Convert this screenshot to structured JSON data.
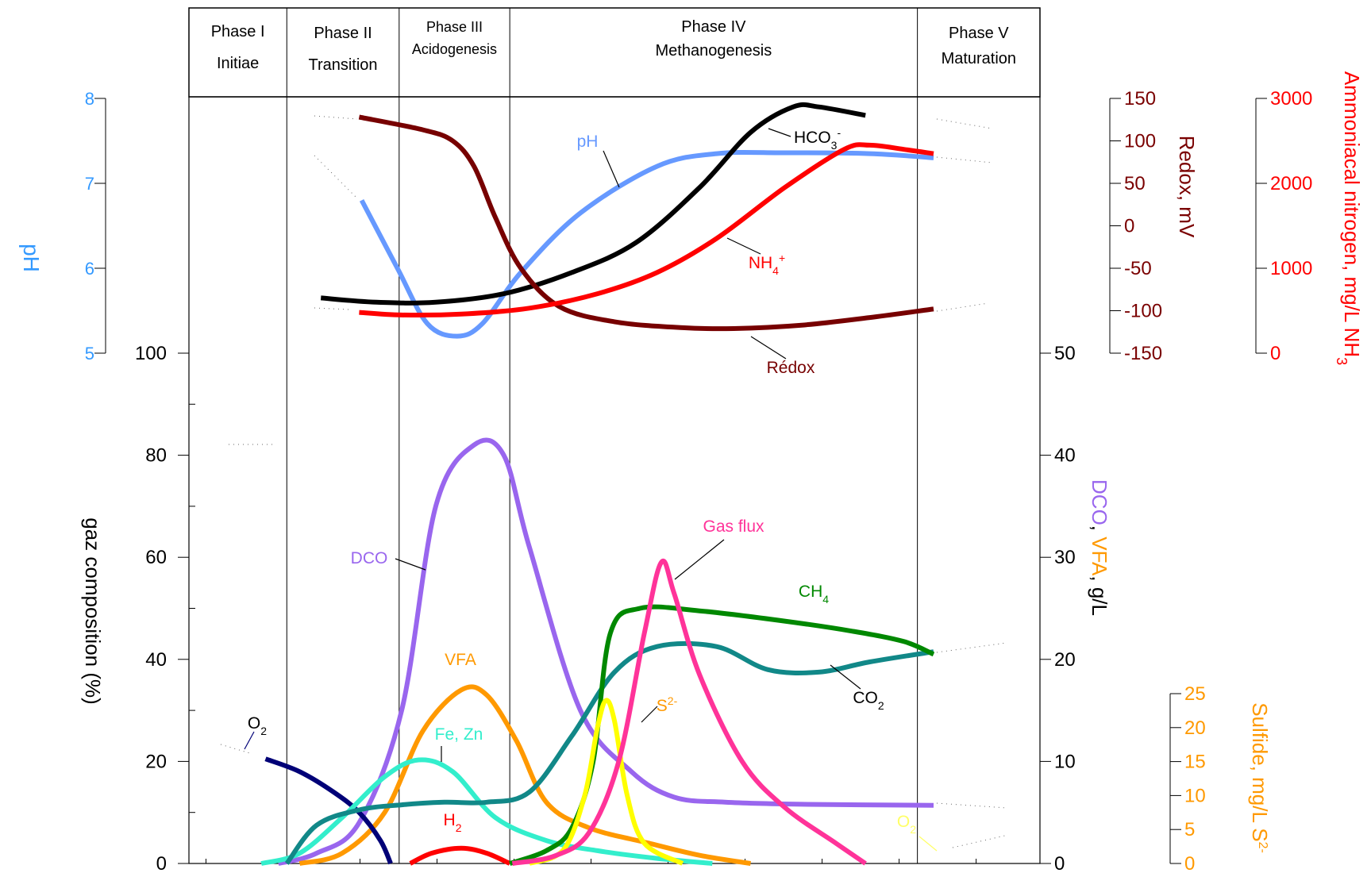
{
  "chart_data": {
    "type": "line",
    "phases": [
      {
        "line1": "Phase I",
        "line2": "Initiae"
      },
      {
        "line1": "Phase II",
        "line2": "Transition"
      },
      {
        "line1": "Phase III",
        "line2": "Acidogenesis"
      },
      {
        "line1": "Phase IV",
        "line2": "Methanogenesis"
      },
      {
        "line1": "Phase V",
        "line2": "Maturation"
      }
    ],
    "x_domain": [
      0,
      100
    ],
    "phase_bounds": [
      0,
      11.5,
      24.7,
      37.7,
      85.6,
      100
    ],
    "axes": {
      "ph": {
        "label": "pH",
        "ticks": [
          "5",
          "6",
          "7",
          "8"
        ],
        "range": [
          5,
          8
        ],
        "color": "#3399ff"
      },
      "gas": {
        "label": "gaz composition (%)",
        "ticks": [
          "0",
          "20",
          "40",
          "60",
          "80",
          "100"
        ],
        "range": [
          0,
          100
        ],
        "color": "#000000"
      },
      "dco_vfa": {
        "label_parts": [
          {
            "text": "DCO",
            "color": "#9966ee"
          },
          {
            "text": ", ",
            "color": "#000000"
          },
          {
            "text": "VFA",
            "color": "#ff9900"
          },
          {
            "text": ", g/L",
            "color": "#000000"
          }
        ],
        "ticks": [
          "0",
          "10",
          "20",
          "30",
          "40",
          "50"
        ],
        "range": [
          0,
          50
        ]
      },
      "redox": {
        "label": "Redox, mV",
        "ticks": [
          "-150",
          "-100",
          "-50",
          "0",
          "50",
          "100",
          "150"
        ],
        "range": [
          -150,
          150
        ],
        "color": "#7a0000"
      },
      "ammonia": {
        "label": "Ammoniacal nitrogen, mg/L NH",
        "label_sub": "3",
        "ticks": [
          "0",
          "1000",
          "2000",
          "3000"
        ],
        "range": [
          0,
          3000
        ],
        "color": "#ff0000"
      },
      "sulfide": {
        "label": "Sulfide, mg/L S",
        "label_sup": "2-",
        "ticks": [
          "0",
          "5",
          "10",
          "15",
          "20",
          "25"
        ],
        "range": [
          0,
          25
        ],
        "color": "#ff9900"
      }
    },
    "series": [
      {
        "name": "pH",
        "axis": "ph",
        "color": "#6699ff",
        "x": [
          20.3,
          24.5,
          28.0,
          31.5,
          34.5,
          39.0,
          46.0,
          55.0,
          62.0,
          70.0,
          80.0,
          87.5
        ],
        "y": [
          6.8,
          6.0,
          5.35,
          5.2,
          5.35,
          5.95,
          6.65,
          7.2,
          7.35,
          7.36,
          7.35,
          7.3
        ]
      },
      {
        "name": "HCO3-",
        "axis": "ph",
        "color": "#000000",
        "x": [
          15.5,
          22.0,
          29.0,
          37.0,
          45.0,
          52.5,
          60.0,
          66.0,
          71.0,
          74.0,
          79.5
        ],
        "y": [
          5.65,
          5.6,
          5.6,
          5.7,
          5.95,
          6.3,
          6.95,
          7.6,
          7.9,
          7.9,
          7.8
        ]
      },
      {
        "name": "Rédox",
        "axis": "redox",
        "color": "#770000",
        "x": [
          20.0,
          27.5,
          31.0,
          33.5,
          36.0,
          39.0,
          43.5,
          50.0,
          58.0,
          64.0,
          72.0,
          80.0,
          87.5
        ],
        "y": [
          128,
          113,
          100,
          70,
          10,
          -50,
          -95,
          -113,
          -120,
          -121,
          -117,
          -108,
          -98
        ]
      },
      {
        "name": "NH4+",
        "axis": "ammonia",
        "color": "#ff0000",
        "x": [
          20.0,
          25.0,
          32.0,
          40.0,
          48.0,
          55.0,
          62.0,
          70.0,
          77.0,
          80.0,
          84.0,
          87.5
        ],
        "y": [
          480,
          450,
          460,
          530,
          700,
          950,
          1350,
          1950,
          2400,
          2450,
          2400,
          2350
        ]
      },
      {
        "name": "DCO",
        "axis": "dco_vfa",
        "color": "#9966ee",
        "x": [
          10.5,
          15.0,
          20.0,
          25.0,
          29.0,
          33.5,
          37.0,
          40.0,
          46.0,
          52.0,
          57.0,
          63.0,
          72.0,
          87.5
        ],
        "y": [
          0.0,
          1.0,
          4.0,
          15.0,
          35.0,
          41.0,
          40.0,
          31.0,
          15.0,
          9.0,
          6.5,
          6.0,
          5.8,
          5.7
        ]
      },
      {
        "name": "VFA",
        "axis": "dco_vfa",
        "color": "#ff9900",
        "x": [
          13.0,
          18.0,
          23.0,
          27.5,
          32.0,
          35.0,
          38.5,
          42.0,
          47.0,
          54.0,
          60.0,
          66.0
        ],
        "y": [
          0.0,
          1.0,
          5.0,
          13.0,
          17.0,
          16.5,
          12.0,
          6.0,
          3.5,
          2.0,
          0.8,
          0.0
        ]
      },
      {
        "name": "O2",
        "axis": "gas",
        "color": "#000077",
        "x": [
          9.0,
          13.0,
          17.0,
          20.0,
          22.5,
          23.7
        ],
        "y": [
          20.5,
          18.0,
          14.0,
          10.0,
          4.5,
          0.0
        ]
      },
      {
        "name": "Fe, Zn",
        "axis": "gas",
        "color": "#33eecc",
        "x": [
          8.5,
          13.0,
          18.0,
          23.0,
          27.0,
          31.0,
          36.0,
          42.0,
          48.0,
          55.0,
          61.5
        ],
        "y": [
          0.0,
          2.0,
          9.0,
          17.0,
          20.3,
          18.0,
          9.0,
          4.5,
          2.5,
          1.0,
          0.0
        ]
      },
      {
        "name": "CO2",
        "axis": "gas",
        "color": "#118888",
        "x": [
          11.5,
          15.0,
          20.0,
          25.0,
          30.0,
          35.0,
          40.0,
          45.0,
          50.0,
          55.0,
          62.0,
          68.0,
          74.0,
          80.0,
          87.5
        ],
        "y": [
          0.0,
          7.5,
          10.5,
          11.5,
          12.0,
          12.0,
          14.0,
          25.0,
          37.5,
          42.5,
          42.5,
          38.0,
          37.5,
          39.5,
          41.5
        ]
      },
      {
        "name": "H2",
        "axis": "gas",
        "color": "#ff0000",
        "x": [
          26.0,
          28.5,
          32.0,
          35.0,
          37.7
        ],
        "y": [
          0.0,
          2.0,
          3.0,
          2.0,
          0.0
        ]
      },
      {
        "name": "CH4",
        "axis": "gas",
        "color": "#008800",
        "x": [
          37.7,
          42.0,
          45.0,
          47.5,
          49.5,
          53.0,
          60.0,
          70.0,
          78.0,
          84.0,
          87.5
        ],
        "y": [
          0.0,
          2.5,
          7.0,
          20.0,
          45.0,
          50.0,
          49.5,
          47.5,
          45.5,
          43.5,
          41.0
        ]
      },
      {
        "name": "S2-",
        "axis": "sulfide",
        "color": "#ffff00",
        "x": [
          40.0,
          44.0,
          46.5,
          48.0,
          49.0,
          50.0,
          51.5,
          53.5,
          58.0
        ],
        "y": [
          0.0,
          2.0,
          10.0,
          20.0,
          24.0,
          21.0,
          10.0,
          3.0,
          0.0
        ]
      },
      {
        "name": "Gas flux",
        "axis": "gas",
        "color": "#ff3399",
        "x": [
          38.0,
          43.0,
          47.0,
          50.5,
          53.5,
          55.5,
          57.0,
          60.0,
          65.0,
          70.0,
          76.0,
          79.5
        ],
        "y": [
          0.0,
          1.5,
          6.0,
          20.0,
          45.0,
          59.0,
          53.0,
          37.0,
          20.0,
          11.0,
          4.0,
          0.0
        ]
      }
    ],
    "annotations": [
      {
        "series": "pH",
        "text": "pH",
        "color": "#6699ff"
      },
      {
        "series": "HCO3-",
        "text": "HCO",
        "sub": "3",
        "sup": "-",
        "color": "#000000"
      },
      {
        "series": "Rédox",
        "text": "Rédox",
        "color": "#770000"
      },
      {
        "series": "NH4+",
        "text": "NH",
        "sub": "4",
        "sup": "+",
        "color": "#ff0000"
      },
      {
        "series": "DCO",
        "text": "DCO",
        "color": "#9966ee"
      },
      {
        "series": "VFA",
        "text": "VFA",
        "color": "#ff9900"
      },
      {
        "series": "O2",
        "text": "O",
        "sub": "2",
        "color": "#000000"
      },
      {
        "series": "Fe, Zn",
        "text": "Fe, Zn",
        "color": "#33eecc"
      },
      {
        "series": "CO2",
        "text": "CO",
        "sub": "2",
        "color": "#000000"
      },
      {
        "series": "H2",
        "text": "H",
        "sub": "2",
        "color": "#ff0000"
      },
      {
        "series": "CH4",
        "text": "CH",
        "sub": "4",
        "color": "#008800"
      },
      {
        "series": "S2-",
        "text": "S",
        "sup": "2-",
        "color": "#ff9900"
      },
      {
        "series": "Gas flux",
        "text": "Gas flux",
        "color": "#ff3399"
      },
      {
        "series": "O2-end",
        "text": "O",
        "sub": "2",
        "color": "#ffff66"
      }
    ],
    "grid": false,
    "legend": "none"
  }
}
